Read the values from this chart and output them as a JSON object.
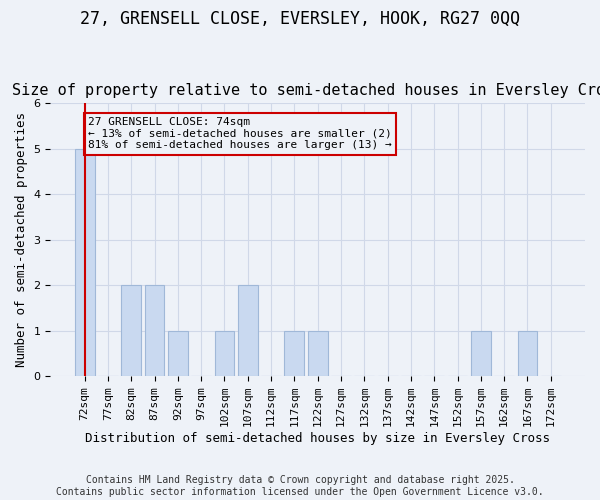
{
  "title1": "27, GRENSELL CLOSE, EVERSLEY, HOOK, RG27 0QQ",
  "title2": "Size of property relative to semi-detached houses in Eversley Cross",
  "xlabel": "Distribution of semi-detached houses by size in Eversley Cross",
  "ylabel": "Number of semi-detached properties",
  "footnote1": "Contains HM Land Registry data © Crown copyright and database right 2025.",
  "footnote2": "Contains public sector information licensed under the Open Government Licence v3.0.",
  "bins": [
    "72sqm",
    "77sqm",
    "82sqm",
    "87sqm",
    "92sqm",
    "97sqm",
    "102sqm",
    "107sqm",
    "112sqm",
    "117sqm",
    "122sqm",
    "127sqm",
    "132sqm",
    "137sqm",
    "142sqm",
    "147sqm",
    "152sqm",
    "157sqm",
    "162sqm",
    "167sqm",
    "172sqm"
  ],
  "values": [
    5,
    0,
    2,
    2,
    1,
    0,
    1,
    2,
    0,
    1,
    1,
    0,
    0,
    0,
    0,
    0,
    0,
    1,
    0,
    1,
    0
  ],
  "subject_bin_index": 0,
  "subject_label": "27 GRENSELL CLOSE: 74sqm",
  "pct_smaller": 13,
  "pct_larger": 81,
  "n_smaller": 2,
  "n_larger": 13,
  "bar_color": "#c9d9f0",
  "bar_edgecolor": "#a0b8d8",
  "subject_line_color": "#cc0000",
  "annotation_box_edgecolor": "#cc0000",
  "ylim": [
    0,
    6
  ],
  "yticks": [
    0,
    1,
    2,
    3,
    4,
    5,
    6
  ],
  "grid_color": "#d0d8e8",
  "bg_color": "#eef2f8",
  "title_fontsize": 12,
  "subtitle_fontsize": 11,
  "axis_label_fontsize": 9,
  "tick_fontsize": 8,
  "annotation_fontsize": 8,
  "footnote_fontsize": 7
}
